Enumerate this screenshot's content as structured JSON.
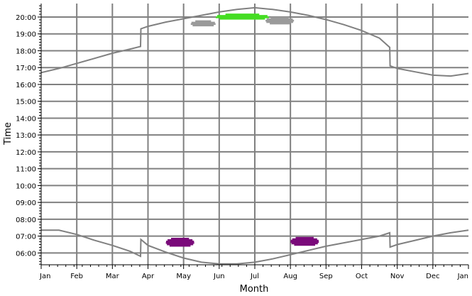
{
  "chart_data": {
    "type": "line",
    "title": "",
    "xlabel": "Month",
    "ylabel": "Time",
    "x_categories": [
      "Jan",
      "Feb",
      "Mar",
      "Apr",
      "May",
      "Jun",
      "Jul",
      "Aug",
      "Sep",
      "Oct",
      "Nov",
      "Dec",
      "Jan"
    ],
    "y_tick_labels": [
      "06:00",
      "07:00",
      "08:00",
      "09:00",
      "10:00",
      "11:00",
      "12:00",
      "13:00",
      "14:00",
      "15:00",
      "16:00",
      "17:00",
      "18:00",
      "19:00",
      "20:00"
    ],
    "ylim": [
      5.3,
      20.8
    ],
    "xlim": [
      0,
      12
    ],
    "grid": true,
    "series": [
      {
        "role": "sunset",
        "color": "#808080",
        "x": [
          0,
          0.5,
          1,
          1.5,
          2,
          2.5,
          2.79,
          2.8,
          3,
          3.5,
          4,
          4.5,
          5,
          5.5,
          6,
          6.5,
          7,
          7.5,
          8,
          8.5,
          9,
          9.5,
          9.79,
          9.8,
          10,
          10.5,
          11,
          11.5,
          12
        ],
        "y": [
          16.7,
          16.95,
          17.25,
          17.55,
          17.85,
          18.1,
          18.25,
          19.3,
          19.45,
          19.7,
          19.9,
          20.1,
          20.3,
          20.45,
          20.55,
          20.45,
          20.3,
          20.1,
          19.85,
          19.55,
          19.2,
          18.75,
          18.2,
          17.1,
          16.95,
          16.75,
          16.55,
          16.5,
          16.65
        ]
      },
      {
        "role": "sunrise",
        "color": "#808080",
        "x": [
          0,
          0.5,
          1,
          1.5,
          2,
          2.5,
          2.79,
          2.8,
          3,
          3.5,
          4,
          4.5,
          5,
          5.5,
          6,
          6.5,
          7,
          7.5,
          8,
          8.5,
          9,
          9.5,
          9.79,
          9.8,
          10,
          10.5,
          11,
          11.5,
          12
        ],
        "y": [
          7.35,
          7.35,
          7.1,
          6.75,
          6.45,
          6.1,
          5.8,
          6.8,
          6.45,
          6.05,
          5.7,
          5.45,
          5.35,
          5.35,
          5.45,
          5.65,
          5.9,
          6.15,
          6.4,
          6.6,
          6.8,
          7.0,
          7.2,
          6.35,
          6.5,
          6.75,
          7.0,
          7.2,
          7.35
        ]
      }
    ],
    "marker_groups": [
      {
        "color": "#9a9a9a",
        "x_start": 4.2,
        "x_end": 4.9,
        "y_low": 19.45,
        "y_high": 19.75
      },
      {
        "color": "#9a9a9a",
        "x_start": 6.3,
        "x_end": 7.1,
        "y_low": 19.6,
        "y_high": 19.95
      },
      {
        "color": "#44dd22",
        "x_start": 4.9,
        "x_end": 6.4,
        "y_low": 19.85,
        "y_high": 20.15
      },
      {
        "color": "#7a0a7a",
        "x_start": 3.5,
        "x_end": 4.3,
        "y_low": 6.4,
        "y_high": 6.85
      },
      {
        "color": "#7a0a7a",
        "x_start": 7.0,
        "x_end": 7.8,
        "y_low": 6.45,
        "y_high": 6.9
      }
    ],
    "colors": {
      "grid": "#808080",
      "axis": "#000000",
      "curve": "#808080"
    }
  }
}
